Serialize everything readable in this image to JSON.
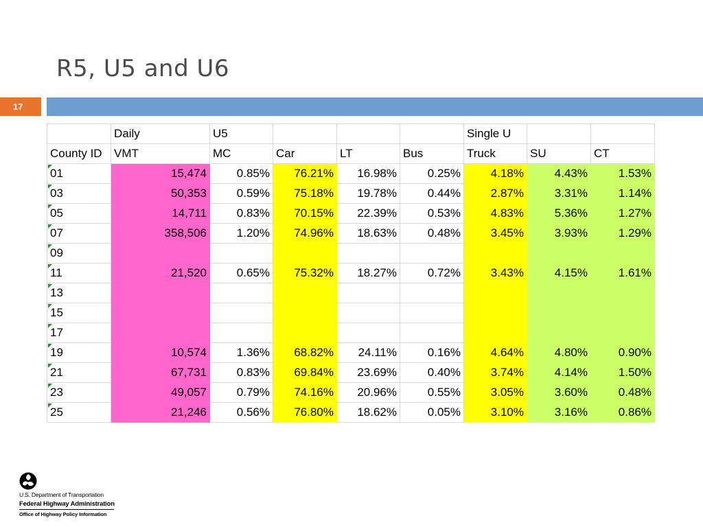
{
  "slide": {
    "title": "R5, U5 and U6",
    "number": "17"
  },
  "table": {
    "header_top": [
      "",
      "Daily",
      "U5",
      "",
      "",
      "",
      "Single U",
      "",
      ""
    ],
    "header_bottom": [
      "County ID",
      "VMT",
      "MC",
      "Car",
      "LT",
      "Bus",
      "Truck",
      "SU",
      "CT"
    ],
    "rows": [
      [
        "01",
        "15,474",
        "0.85%",
        "76.21%",
        "16.98%",
        "0.25%",
        "4.18%",
        "4.43%",
        "1.53%"
      ],
      [
        "03",
        "50,353",
        "0.59%",
        "75.18%",
        "19.78%",
        "0.44%",
        "2.87%",
        "3.31%",
        "1.14%"
      ],
      [
        "05",
        "14,711",
        "0.83%",
        "70.15%",
        "22.39%",
        "0.53%",
        "4.83%",
        "5.36%",
        "1.27%"
      ],
      [
        "07",
        "358,506",
        "1.20%",
        "74.96%",
        "18.63%",
        "0.48%",
        "3.45%",
        "3.93%",
        "1.29%"
      ],
      [
        "09",
        "",
        "",
        "",
        "",
        "",
        "",
        "",
        ""
      ],
      [
        "11",
        "21,520",
        "0.65%",
        "75.32%",
        "18.27%",
        "0.72%",
        "3.43%",
        "4.15%",
        "1.61%"
      ],
      [
        "13",
        "",
        "",
        "",
        "",
        "",
        "",
        "",
        ""
      ],
      [
        "15",
        "",
        "",
        "",
        "",
        "",
        "",
        "",
        ""
      ],
      [
        "17",
        "",
        "",
        "",
        "",
        "",
        "",
        "",
        ""
      ],
      [
        "19",
        "10,574",
        "1.36%",
        "68.82%",
        "24.11%",
        "0.16%",
        "4.64%",
        "4.80%",
        "0.90%"
      ],
      [
        "21",
        "67,731",
        "0.83%",
        "69.84%",
        "23.69%",
        "0.40%",
        "3.74%",
        "4.14%",
        "1.50%"
      ],
      [
        "23",
        "49,057",
        "0.79%",
        "74.16%",
        "20.96%",
        "0.55%",
        "3.05%",
        "3.60%",
        "0.48%"
      ],
      [
        "25",
        "21,246",
        "0.56%",
        "76.80%",
        "18.62%",
        "0.05%",
        "3.10%",
        "3.16%",
        "0.86%"
      ]
    ]
  },
  "colors": {
    "vmt_highlight": "#ff66cc",
    "car_highlight": "#ffff00",
    "single_unit_truck_highlight": "#ffff00",
    "su_ct_highlight": "#ccff66",
    "slide_number_bg": "#e8742c",
    "title_bar": "#6c9fd0"
  },
  "footer": {
    "logo_icon": "dot-triskelion-icon",
    "line1": "U.S. Department of Transportation",
    "line2": "Federal Highway Administration",
    "line3": "Office of Highway Policy Information"
  }
}
